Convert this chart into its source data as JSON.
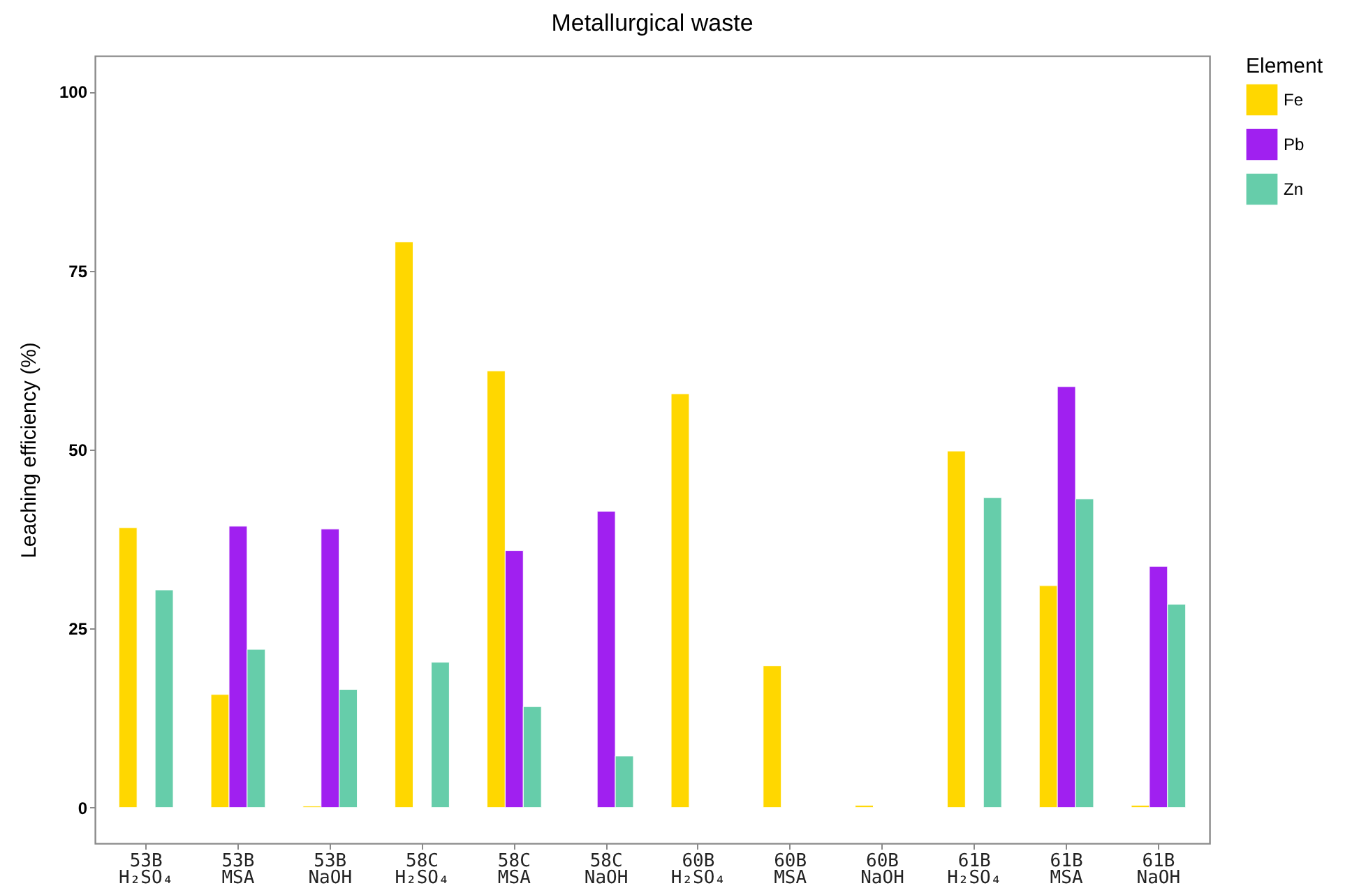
{
  "chart_data": {
    "type": "bar",
    "title": "Metallurgical waste",
    "ylabel": "Leaching efficiency (%)",
    "legend_title": "Element",
    "legend": "right",
    "categories": [
      "53B\nH₂SO₄",
      "53B\nMSA",
      "53B\nNaOH",
      "58C\nH₂SO₄",
      "58C\nMSA",
      "58C\nNaOH",
      "60B\nH₂SO₄",
      "60B\nMSA",
      "60B\nNaOH",
      "61B\nH₂SO₄",
      "61B\nMSA",
      "61B\nNaOH"
    ],
    "ylim": [
      -5,
      105
    ],
    "yticks": [
      0,
      25,
      50,
      75,
      100
    ],
    "series": [
      {
        "name": "Fe",
        "color": "#ffd700",
        "values": [
          39.1,
          15.8,
          0.2,
          79.0,
          61.0,
          null,
          57.8,
          19.8,
          0.3,
          49.8,
          31.0,
          0.3
        ]
      },
      {
        "name": "Pb",
        "color": "#a020f0",
        "values": [
          null,
          39.3,
          38.9,
          null,
          35.9,
          41.4,
          null,
          null,
          null,
          null,
          58.8,
          33.7
        ]
      },
      {
        "name": "Zn",
        "color": "#66cdaa",
        "values": [
          30.4,
          22.1,
          16.5,
          20.3,
          14.1,
          7.2,
          null,
          null,
          null,
          43.3,
          43.1,
          28.4
        ]
      }
    ]
  }
}
